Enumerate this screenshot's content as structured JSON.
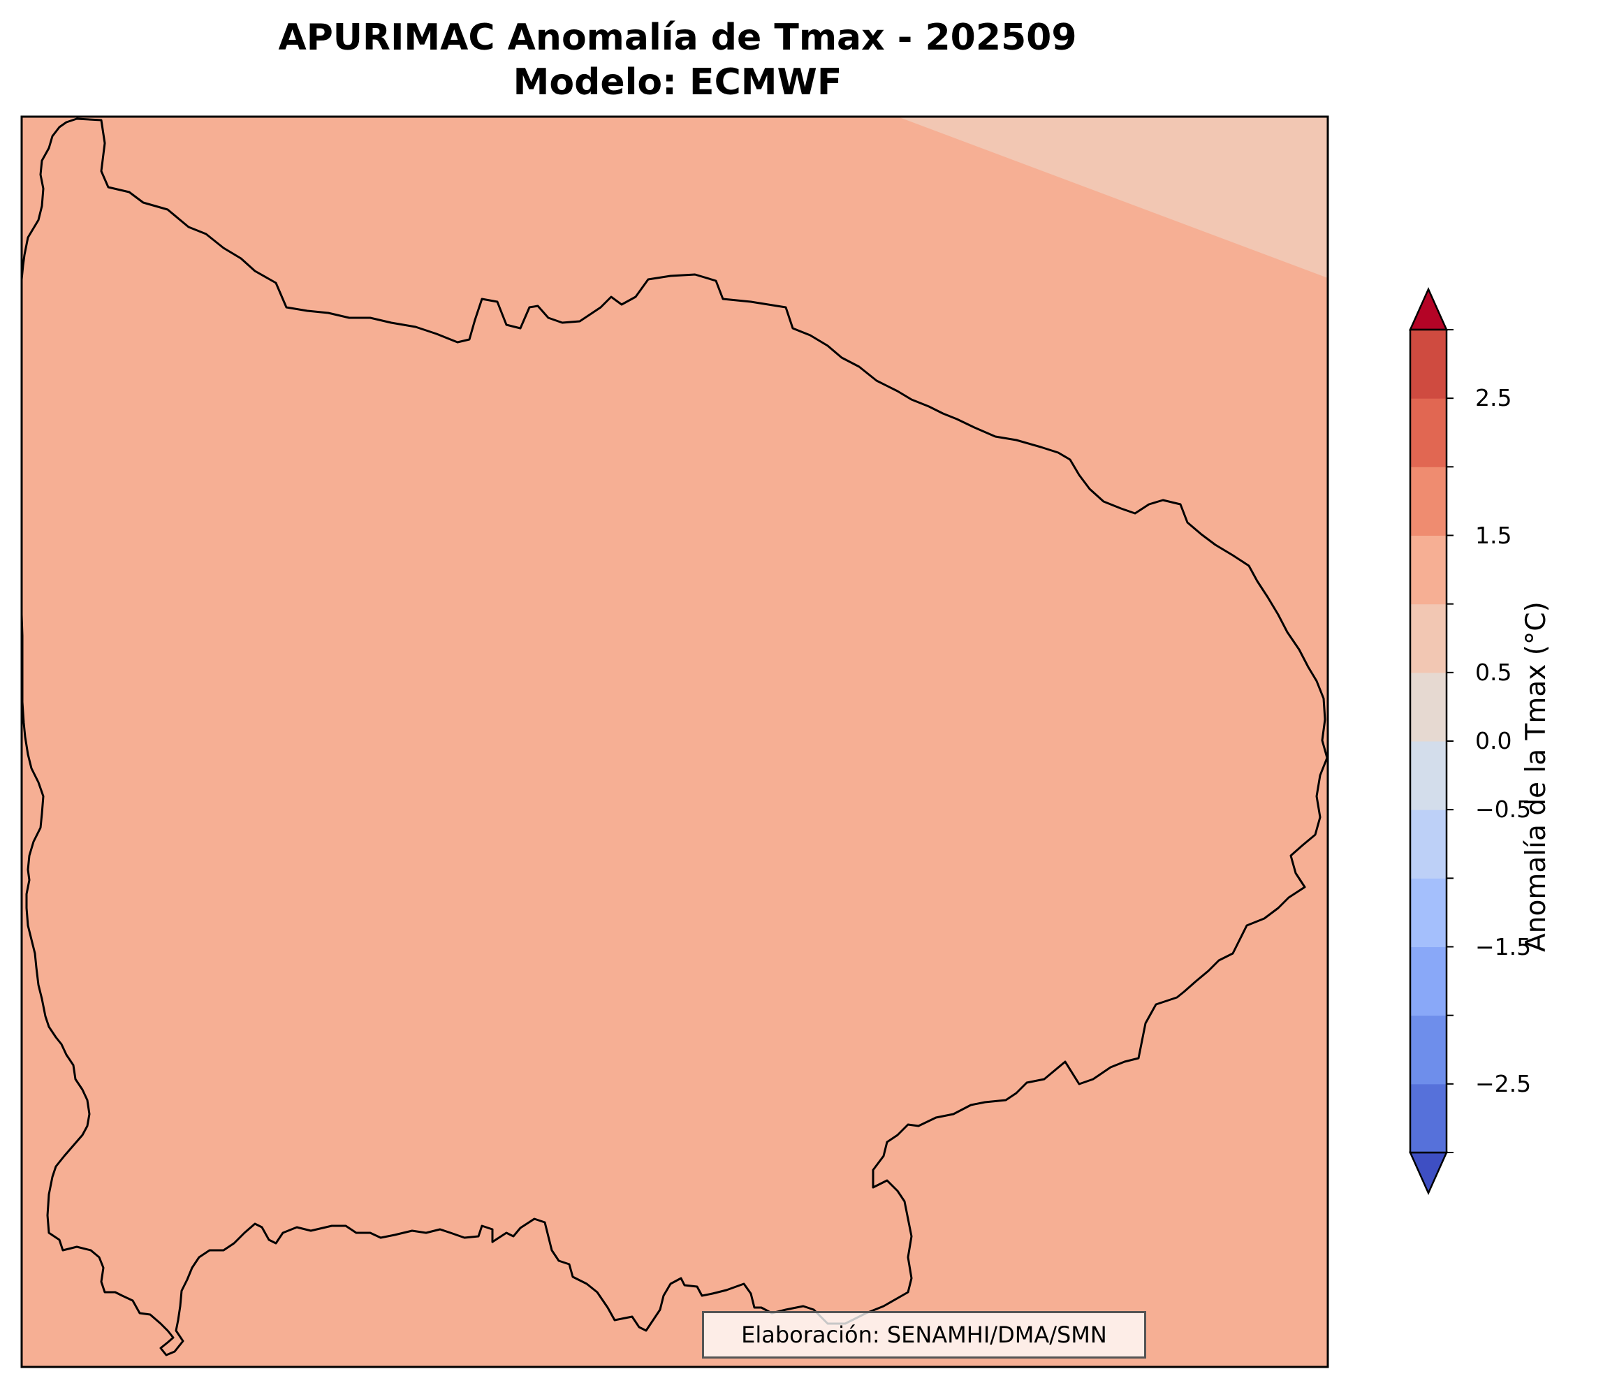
{
  "figure": {
    "title_line1": "APURIMAC Anomalía de Tmax - 202509",
    "title_line2": "Modelo: ECMWF",
    "credit": "Elaboración: SENAMHI/DMA/SMN"
  },
  "map": {
    "region": "APURIMAC",
    "field": "Tmax anomaly",
    "fill_color": "#F6AF94",
    "corner_region_color": "#F2C7B3",
    "boundary_color": "#000000"
  },
  "colorbar": {
    "label": "Anomalía de la Tmax (°C)",
    "vmin": -3.0,
    "vmax": 3.0,
    "extend": "both",
    "levels": [
      -3.0,
      -2.5,
      -2.0,
      -1.5,
      -1.0,
      -0.5,
      0.0,
      0.5,
      1.0,
      1.5,
      2.0,
      2.5,
      3.0
    ],
    "colors": [
      "#3E4FC3",
      "#5671DA",
      "#6E8EEB",
      "#89A8F8",
      "#A4BFFC",
      "#BDD0F7",
      "#D3DDEB",
      "#E6D9D1",
      "#F2C7B3",
      "#F6AF94",
      "#EF8C70",
      "#E16752",
      "#CF4B40",
      "#B40426"
    ],
    "tick_values": [
      2.5,
      1.5,
      0.5,
      0.0,
      -0.5,
      -1.5,
      -2.5
    ],
    "tick_labels": [
      "2.5",
      "1.5",
      "0.5",
      "0.0",
      "−0.5",
      "−1.5",
      "−2.5"
    ]
  }
}
